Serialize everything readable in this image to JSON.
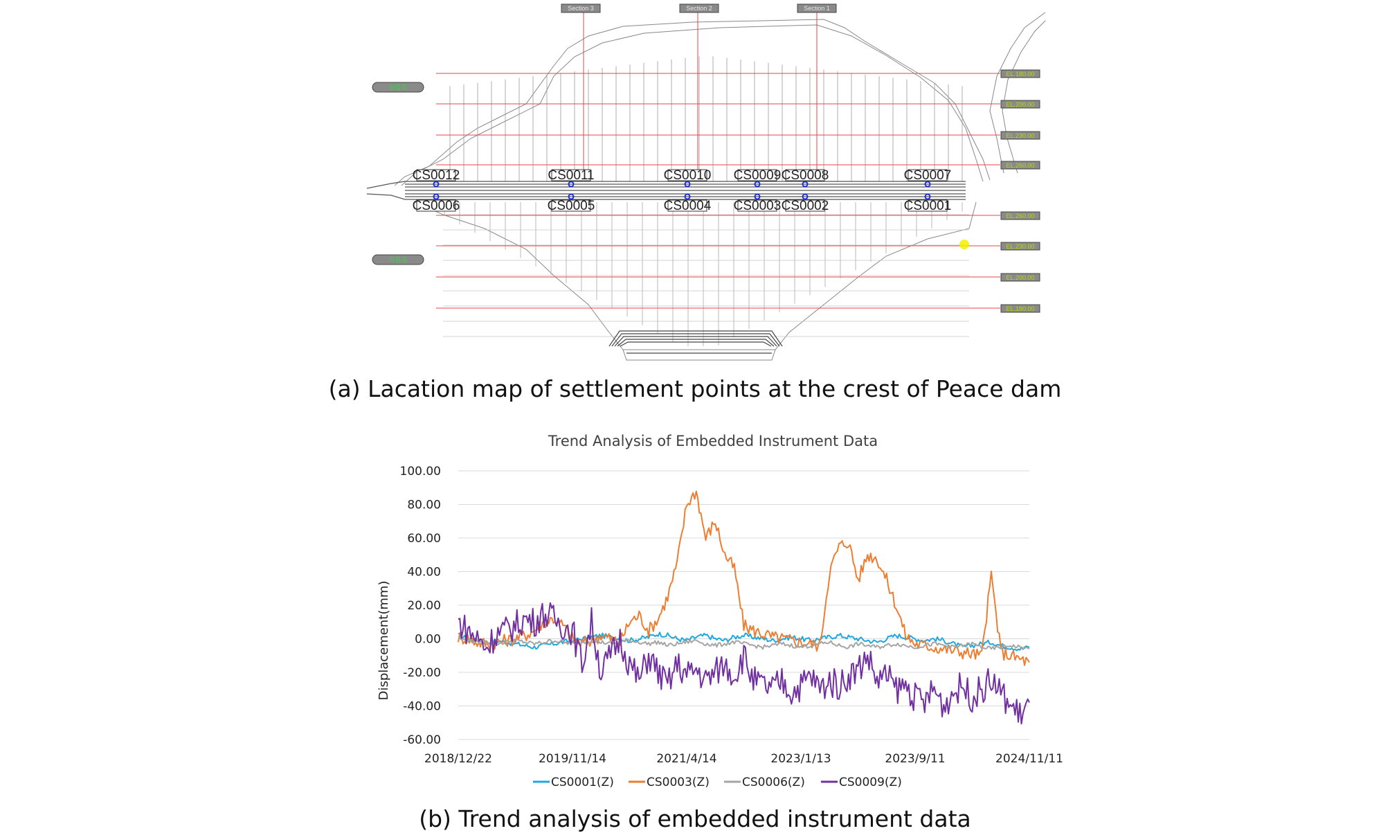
{
  "captions": {
    "a": "(a) Lacation map of settlement points at the crest of Peace dam",
    "b": "(b) Trend analysis of embedded instrument data"
  },
  "map": {
    "sections": [
      "Section 3",
      "Section 2",
      "Section 1"
    ],
    "elevations_upper": [
      "EL.180.00",
      "EL.200.00",
      "EL.230.00",
      "EL.260.00"
    ],
    "elevations_lower": [
      "EL.260.00",
      "EL.230.00",
      "EL.200.00",
      "EL.180.00"
    ],
    "upstream_label": "상류측",
    "downstream_label": "하류측",
    "upper_points": [
      "CS0012",
      "CS0011",
      "CS0010",
      "CS0009",
      "CS0008",
      "CS0007"
    ],
    "lower_points": [
      "CS0006",
      "CS0005",
      "CS0004",
      "CS0003",
      "CS0002",
      "CS0001"
    ],
    "colors": {
      "el_line": "#e8434a",
      "marker": "#1a2fd8",
      "label_box": "#8a8a8a",
      "label_text": "#c8e000"
    }
  },
  "chart_data": {
    "type": "line",
    "title": "Trend Analysis of Embedded Instrument Data",
    "ylabel": "Displacement(mm)",
    "xlabel": "",
    "ylim": [
      -60,
      100
    ],
    "yticks": [
      "100.00",
      "80.00",
      "60.00",
      "40.00",
      "20.00",
      "0.00",
      "-20.00",
      "-40.00",
      "-60.00"
    ],
    "x_ticks": [
      "2018/12/22",
      "2019/11/14",
      "2021/4/14",
      "2023/1/13",
      "2023/9/11",
      "2024/11/11"
    ],
    "grid": true,
    "legend_position": "bottom",
    "series": [
      {
        "name": "CS0001(Z)",
        "color": "#1ea8e0",
        "values": [
          2,
          0,
          -1,
          -2,
          -1,
          -2,
          -3,
          -4,
          -5,
          -4,
          -3,
          -2,
          -1,
          0,
          1,
          2,
          1,
          0,
          -1,
          0,
          1,
          3,
          2,
          0,
          -1,
          1,
          2,
          0,
          -1,
          1,
          2,
          1,
          0,
          -1,
          0,
          1,
          0,
          -1,
          0,
          1,
          2,
          1,
          0,
          -1,
          -2,
          0,
          2,
          1,
          0,
          -1,
          0,
          -1,
          -3,
          -5,
          -4,
          -3,
          -2,
          -4,
          -5,
          -6,
          -5
        ]
      },
      {
        "name": "CS0003(Z)",
        "color": "#ed7d31",
        "values": [
          1,
          0,
          -2,
          -3,
          -2,
          -1,
          0,
          2,
          5,
          10,
          12,
          8,
          0,
          -3,
          -1,
          2,
          0,
          -2,
          10,
          14,
          5,
          12,
          25,
          45,
          80,
          88,
          60,
          70,
          50,
          42,
          8,
          5,
          3,
          1,
          0,
          -1,
          -2,
          -3,
          -4,
          40,
          55,
          58,
          35,
          50,
          48,
          35,
          20,
          2,
          -3,
          -4,
          -5,
          -6,
          -7,
          -8,
          -9,
          -10,
          38,
          -8,
          -10,
          -12,
          -14
        ]
      },
      {
        "name": "CS0006(Z)",
        "color": "#a5a5a5",
        "values": [
          0,
          -1,
          -2,
          -2,
          -3,
          -2,
          -1,
          -2,
          -3,
          -2,
          -1,
          -2,
          -3,
          -2,
          -1,
          -2,
          -3,
          -2,
          -1,
          -2,
          -3,
          -2,
          -4,
          -3,
          -2,
          -1,
          -3,
          -4,
          -3,
          -2,
          -3,
          -4,
          -5,
          -4,
          -3,
          -4,
          -5,
          -4,
          -3,
          -2,
          -4,
          -5,
          -3,
          -4,
          -5,
          -4,
          -3,
          -4,
          -5,
          -4,
          -3,
          -4,
          -5,
          -4,
          -3,
          -5,
          -6,
          -5,
          -4,
          -5,
          -6
        ]
      },
      {
        "name": "CS0009(Z)",
        "color": "#7030a0",
        "values": [
          10,
          5,
          0,
          -5,
          3,
          5,
          8,
          12,
          10,
          15,
          12,
          8,
          5,
          -15,
          10,
          -20,
          -10,
          0,
          -15,
          -25,
          -10,
          -20,
          -28,
          -15,
          -22,
          -18,
          -25,
          -20,
          -15,
          -22,
          -10,
          -25,
          -28,
          -30,
          -25,
          -32,
          -28,
          -22,
          -30,
          -25,
          -28,
          -22,
          -18,
          -10,
          -25,
          -22,
          -30,
          -28,
          -35,
          -38,
          -30,
          -40,
          -32,
          -28,
          -35,
          -30,
          -25,
          -32,
          -40,
          -45,
          -38
        ]
      }
    ]
  }
}
